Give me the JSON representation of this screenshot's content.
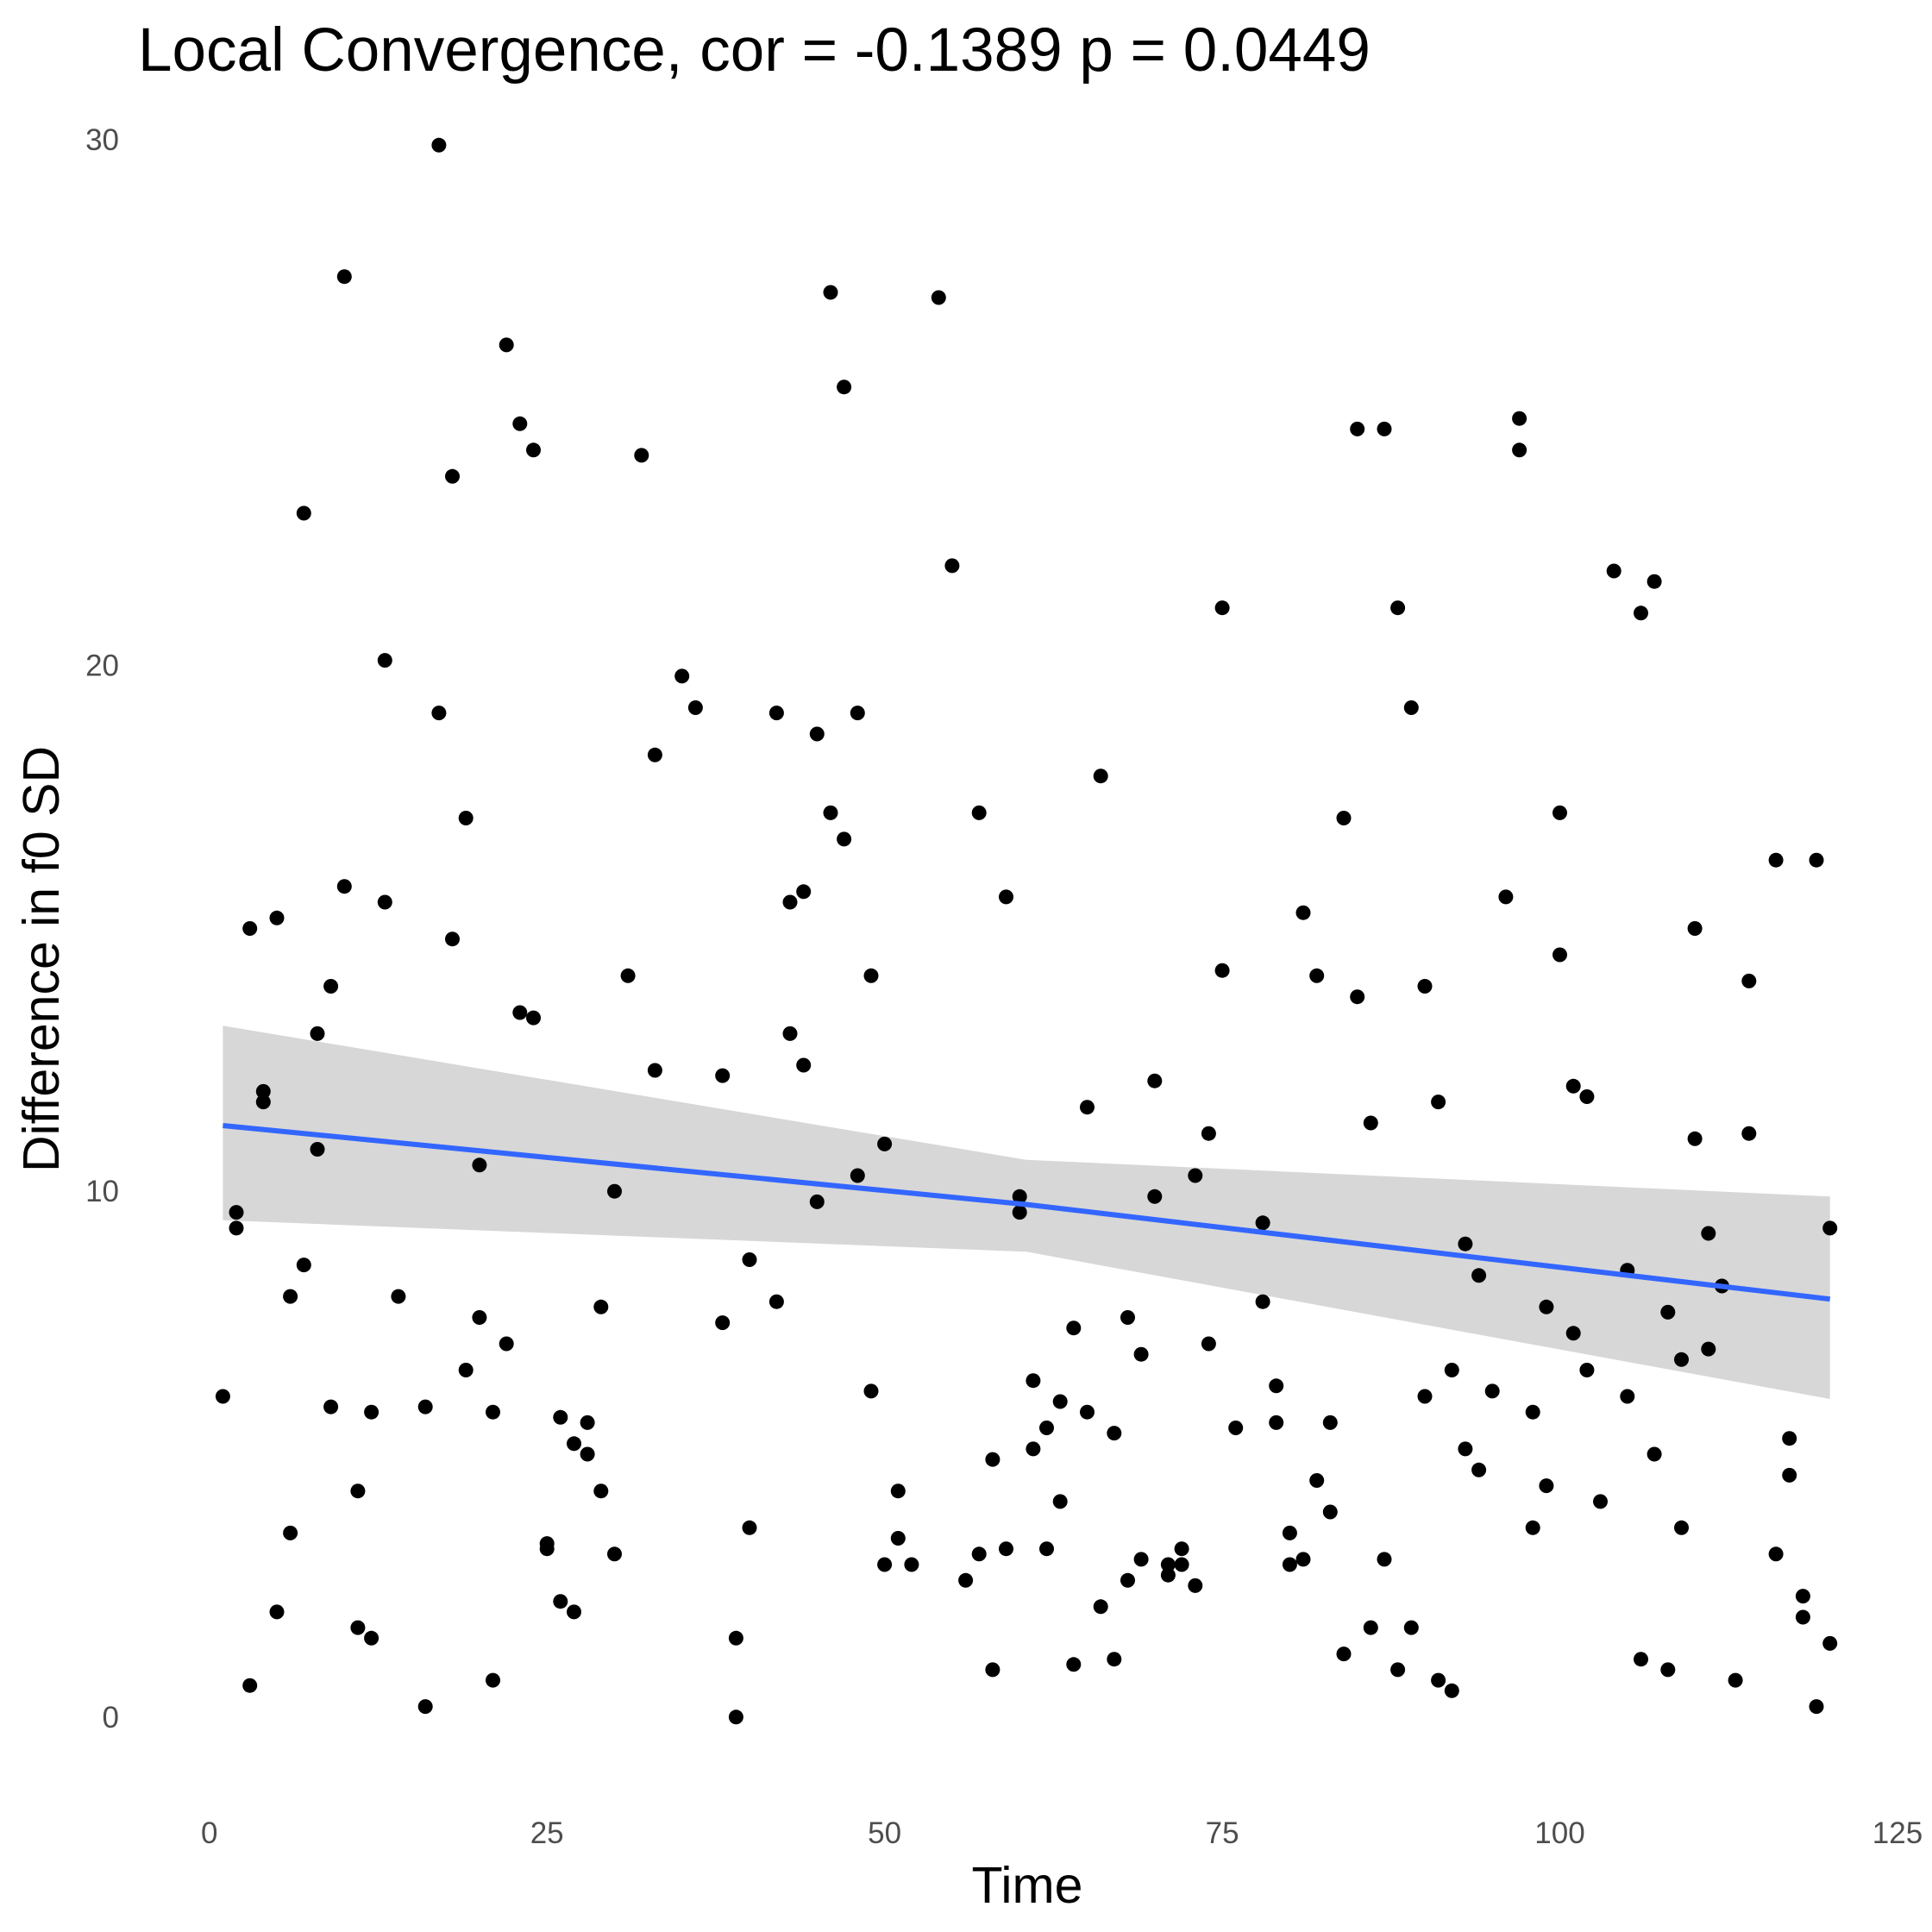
{
  "chart_data": {
    "type": "scatter",
    "title": "Local Convergence, cor = -0.1389 p = 0.0449",
    "xlabel": "Time",
    "ylabel": "Difference in f0 SD",
    "xlim": [
      -0.3,
      125
    ],
    "ylim": [
      -1.3,
      30.2
    ],
    "xticks": [
      0,
      25,
      50,
      75,
      100,
      125
    ],
    "yticks": [
      0,
      10,
      20,
      30
    ],
    "grid": false,
    "legend": "none",
    "point_color": "#000000",
    "fit_line_color": "#3366FF",
    "ribbon_color": "#D3D3D3",
    "fit": {
      "x": [
        1,
        60.5,
        120
      ],
      "y": [
        11.25,
        9.75,
        7.95
      ],
      "ci_lower": [
        9.45,
        8.85,
        6.05
      ],
      "ci_upper": [
        13.15,
        10.6,
        9.9
      ]
    },
    "points": [
      [
        1,
        6.1
      ],
      [
        2,
        9.6
      ],
      [
        2,
        9.3
      ],
      [
        3,
        15.0
      ],
      [
        3,
        0.6
      ],
      [
        4,
        11.9
      ],
      [
        4,
        11.7
      ],
      [
        5,
        15.2
      ],
      [
        5,
        2.0
      ],
      [
        6,
        8.0
      ],
      [
        6,
        3.5
      ],
      [
        7,
        22.9
      ],
      [
        7,
        8.6
      ],
      [
        8,
        13.0
      ],
      [
        8,
        10.8
      ],
      [
        9,
        13.9
      ],
      [
        9,
        5.9
      ],
      [
        10,
        27.4
      ],
      [
        10,
        15.8
      ],
      [
        11,
        4.3
      ],
      [
        11,
        1.7
      ],
      [
        12,
        5.8
      ],
      [
        12,
        1.5
      ],
      [
        13,
        20.1
      ],
      [
        13,
        15.5
      ],
      [
        14,
        8.0
      ],
      [
        16,
        0.2
      ],
      [
        16,
        5.9
      ],
      [
        17,
        29.9
      ],
      [
        17,
        19.1
      ],
      [
        18,
        23.6
      ],
      [
        18,
        14.8
      ],
      [
        19,
        17.1
      ],
      [
        19,
        6.6
      ],
      [
        20,
        10.5
      ],
      [
        20,
        7.6
      ],
      [
        21,
        5.8
      ],
      [
        21,
        0.7
      ],
      [
        22,
        26.1
      ],
      [
        22,
        7.1
      ],
      [
        23,
        24.6
      ],
      [
        23,
        13.4
      ],
      [
        24,
        24.1
      ],
      [
        24,
        13.3
      ],
      [
        25,
        3.3
      ],
      [
        25,
        3.2
      ],
      [
        26,
        5.7
      ],
      [
        26,
        2.2
      ],
      [
        27,
        5.2
      ],
      [
        27,
        2.0
      ],
      [
        28,
        5.6
      ],
      [
        28,
        5.0
      ],
      [
        29,
        7.8
      ],
      [
        29,
        4.3
      ],
      [
        30,
        10.0
      ],
      [
        30,
        3.1
      ],
      [
        31,
        14.1
      ],
      [
        32,
        24.0
      ],
      [
        33,
        18.3
      ],
      [
        33,
        12.3
      ],
      [
        35,
        19.8
      ],
      [
        36,
        19.2
      ],
      [
        38,
        12.2
      ],
      [
        38,
        7.5
      ],
      [
        39,
        1.5
      ],
      [
        39,
        0.0
      ],
      [
        40,
        8.7
      ],
      [
        40,
        3.6
      ],
      [
        42,
        19.1
      ],
      [
        42,
        7.9
      ],
      [
        43,
        15.5
      ],
      [
        43,
        13.0
      ],
      [
        44,
        15.7
      ],
      [
        44,
        12.4
      ],
      [
        45,
        18.7
      ],
      [
        45,
        9.8
      ],
      [
        46,
        27.1
      ],
      [
        46,
        17.2
      ],
      [
        47,
        25.3
      ],
      [
        47,
        16.7
      ],
      [
        48,
        19.1
      ],
      [
        48,
        10.3
      ],
      [
        49,
        14.1
      ],
      [
        49,
        6.2
      ],
      [
        50,
        10.9
      ],
      [
        50,
        2.9
      ],
      [
        51,
        4.3
      ],
      [
        51,
        3.4
      ],
      [
        52,
        2.9
      ],
      [
        54,
        27.0
      ],
      [
        55,
        21.9
      ],
      [
        56,
        2.6
      ],
      [
        57,
        17.2
      ],
      [
        57,
        3.1
      ],
      [
        58,
        4.9
      ],
      [
        58,
        0.9
      ],
      [
        59,
        15.6
      ],
      [
        59,
        3.2
      ],
      [
        60,
        9.9
      ],
      [
        60,
        9.6
      ],
      [
        61,
        6.4
      ],
      [
        61,
        5.1
      ],
      [
        62,
        5.5
      ],
      [
        62,
        3.2
      ],
      [
        63,
        6.0
      ],
      [
        63,
        4.1
      ],
      [
        64,
        7.4
      ],
      [
        64,
        1.0
      ],
      [
        65,
        11.6
      ],
      [
        65,
        5.8
      ],
      [
        66,
        17.9
      ],
      [
        66,
        2.1
      ],
      [
        67,
        5.4
      ],
      [
        67,
        1.1
      ],
      [
        68,
        7.6
      ],
      [
        68,
        2.6
      ],
      [
        69,
        6.9
      ],
      [
        69,
        3.0
      ],
      [
        70,
        12.1
      ],
      [
        70,
        9.9
      ],
      [
        71,
        2.9
      ],
      [
        71,
        2.7
      ],
      [
        72,
        3.2
      ],
      [
        72,
        2.9
      ],
      [
        73,
        10.3
      ],
      [
        73,
        2.5
      ],
      [
        74,
        11.1
      ],
      [
        74,
        7.1
      ],
      [
        75,
        21.1
      ],
      [
        75,
        14.2
      ],
      [
        76,
        5.5
      ],
      [
        78,
        9.4
      ],
      [
        78,
        7.9
      ],
      [
        79,
        6.3
      ],
      [
        79,
        5.6
      ],
      [
        80,
        3.5
      ],
      [
        80,
        2.9
      ],
      [
        81,
        15.3
      ],
      [
        81,
        3.0
      ],
      [
        82,
        14.1
      ],
      [
        82,
        4.5
      ],
      [
        83,
        5.6
      ],
      [
        83,
        3.9
      ],
      [
        84,
        17.1
      ],
      [
        84,
        1.2
      ],
      [
        85,
        24.5
      ],
      [
        85,
        13.7
      ],
      [
        86,
        11.3
      ],
      [
        86,
        1.7
      ],
      [
        87,
        24.5
      ],
      [
        87,
        3.0
      ],
      [
        88,
        21.1
      ],
      [
        88,
        0.9
      ],
      [
        89,
        19.2
      ],
      [
        89,
        1.7
      ],
      [
        90,
        13.9
      ],
      [
        90,
        6.1
      ],
      [
        91,
        11.7
      ],
      [
        91,
        0.7
      ],
      [
        92,
        6.6
      ],
      [
        92,
        0.5
      ],
      [
        93,
        9.0
      ],
      [
        93,
        5.1
      ],
      [
        94,
        8.4
      ],
      [
        94,
        4.7
      ],
      [
        95,
        6.2
      ],
      [
        96,
        15.6
      ],
      [
        97,
        24.7
      ],
      [
        97,
        24.1
      ],
      [
        98,
        5.8
      ],
      [
        98,
        3.6
      ],
      [
        99,
        7.8
      ],
      [
        99,
        4.4
      ],
      [
        100,
        17.2
      ],
      [
        100,
        14.5
      ],
      [
        101,
        12.0
      ],
      [
        101,
        7.3
      ],
      [
        102,
        11.8
      ],
      [
        102,
        6.6
      ],
      [
        103,
        4.1
      ],
      [
        104,
        21.8
      ],
      [
        105,
        8.5
      ],
      [
        105,
        6.1
      ],
      [
        106,
        21.0
      ],
      [
        106,
        1.1
      ],
      [
        107,
        21.6
      ],
      [
        107,
        5.0
      ],
      [
        108,
        7.7
      ],
      [
        108,
        0.9
      ],
      [
        109,
        6.8
      ],
      [
        109,
        3.6
      ],
      [
        110,
        15.0
      ],
      [
        110,
        11.0
      ],
      [
        111,
        9.2
      ],
      [
        111,
        7.0
      ],
      [
        112,
        8.2
      ],
      [
        113,
        0.7
      ],
      [
        114,
        14.0
      ],
      [
        114,
        11.1
      ],
      [
        116,
        16.3
      ],
      [
        116,
        3.1
      ],
      [
        117,
        5.3
      ],
      [
        117,
        4.6
      ],
      [
        118,
        2.3
      ],
      [
        118,
        1.9
      ],
      [
        119,
        16.3
      ],
      [
        119,
        0.2
      ],
      [
        120,
        9.3
      ],
      [
        120,
        1.4
      ]
    ]
  }
}
